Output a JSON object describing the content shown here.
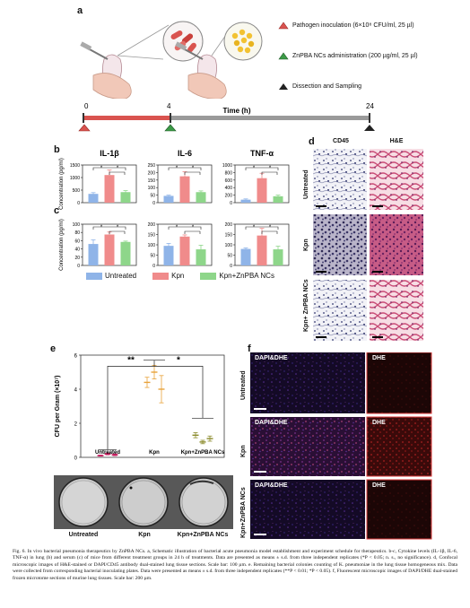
{
  "panel_a": {
    "label": "a",
    "legend": [
      {
        "text": "Pathogen inoculation (6×10⁸ CFU/ml, 25 µl)",
        "color": "#d9534f"
      },
      {
        "text": "ZnPBA NCs administration (200 µg/ml, 25 µl)",
        "color": "#3c9a47"
      },
      {
        "text": "Dissection and Sampling",
        "color": "#222222"
      }
    ],
    "timeline": {
      "label": "Time (h)",
      "ticks": [
        "0",
        "4",
        "24"
      ]
    }
  },
  "panel_labels": {
    "b": "b",
    "c": "c",
    "d": "d",
    "e": "e",
    "f": "f"
  },
  "bar_legend": [
    {
      "name": "Untreated",
      "color": "#8fb4e8"
    },
    {
      "name": "Kpn",
      "color": "#f08b8b"
    },
    {
      "name": "Kpn+ZnPBA NCs",
      "color": "#8ed68a"
    }
  ],
  "chart_data": [
    {
      "type": "bar",
      "panel": "b",
      "title": "IL-1β",
      "ylabel": "Concentration (pg/ml)",
      "categories": [
        "Untreated",
        "Kpn",
        "Kpn+ZnPBA NCs"
      ],
      "values": [
        350,
        1100,
        420
      ],
      "errors": [
        50,
        200,
        60
      ],
      "ylim": [
        0,
        1500
      ],
      "yticks": [
        "0",
        "500",
        "1000",
        "1500"
      ],
      "sig": [
        "*",
        "*"
      ]
    },
    {
      "type": "bar",
      "panel": "b",
      "title": "IL-6",
      "ylabel": "",
      "categories": [
        "Untreated",
        "Kpn",
        "Kpn+ZnPBA NCs"
      ],
      "values": [
        45,
        175,
        70
      ],
      "errors": [
        5,
        30,
        8
      ],
      "ylim": [
        0,
        250
      ],
      "yticks": [
        "0",
        "50",
        "100",
        "150",
        "200",
        "250"
      ],
      "sig": [
        "*",
        "*"
      ]
    },
    {
      "type": "bar",
      "panel": "b",
      "title": "TNF-α",
      "ylabel": "",
      "categories": [
        "Untreated",
        "Kpn",
        "Kpn+ZnPBA NCs"
      ],
      "values": [
        80,
        650,
        170
      ],
      "errors": [
        20,
        130,
        30
      ],
      "ylim": [
        0,
        1000
      ],
      "yticks": [
        "0",
        "200",
        "400",
        "600",
        "800",
        "1000"
      ],
      "sig": [
        "*",
        "*"
      ]
    },
    {
      "type": "bar",
      "panel": "c",
      "title": "",
      "ylabel": "Concentration (pg/ml)",
      "categories": [
        "Untreated",
        "Kpn",
        "Kpn+ZnPBA NCs"
      ],
      "values": [
        52,
        75,
        57
      ],
      "errors": [
        10,
        6,
        2
      ],
      "ylim": [
        0,
        100
      ],
      "yticks": [
        "0",
        "20",
        "40",
        "60",
        "80",
        "100"
      ],
      "sig": [
        "*",
        "*"
      ]
    },
    {
      "type": "bar",
      "panel": "c",
      "title": "",
      "ylabel": "",
      "categories": [
        "Untreated",
        "Kpn",
        "Kpn+ZnPBA NCs"
      ],
      "values": [
        95,
        140,
        78
      ],
      "errors": [
        12,
        8,
        20
      ],
      "ylim": [
        0,
        200
      ],
      "yticks": [
        "0",
        "50",
        "100",
        "150",
        "200"
      ],
      "sig": [
        "*",
        "*"
      ]
    },
    {
      "type": "bar",
      "panel": "c",
      "title": "",
      "ylabel": "",
      "categories": [
        "Untreated",
        "Kpn",
        "Kpn+ZnPBA NCs"
      ],
      "values": [
        80,
        145,
        78
      ],
      "errors": [
        5,
        35,
        15
      ],
      "ylim": [
        0,
        200
      ],
      "yticks": [
        "0",
        "50",
        "100",
        "150",
        "200"
      ],
      "sig": [
        "*",
        "*"
      ]
    },
    {
      "type": "scatter",
      "panel": "e",
      "title": "",
      "ylabel": "CFU per Gram (×10⁷)",
      "categories": [
        "Untreated",
        "Kpn",
        "Kpn+ZnPBA NCs"
      ],
      "series": [
        {
          "group": "Untreated",
          "color": "#c2185b",
          "points": [
            [
              0.1,
              0.03
            ],
            [
              0.2,
              0.05
            ],
            [
              0.15,
              0.05
            ]
          ]
        },
        {
          "group": "Kpn",
          "color": "#e8a23a",
          "points": [
            [
              4.4,
              0.3
            ],
            [
              5.0,
              0.4
            ],
            [
              4.0,
              0.8
            ]
          ]
        },
        {
          "group": "Kpn+ZnPBA NCs",
          "color": "#8a8a2a",
          "points": [
            [
              1.3,
              0.15
            ],
            [
              0.9,
              0.1
            ],
            [
              1.1,
              0.15
            ]
          ]
        }
      ],
      "ylim": [
        0,
        6
      ],
      "yticks": [
        "0",
        "2",
        "4",
        "6"
      ],
      "sig": [
        "**",
        "*"
      ]
    }
  ],
  "panel_d": {
    "col_titles": [
      "CD45",
      "H&E"
    ],
    "row_labels": [
      "Untreated",
      "Kpn",
      "Kpn+ ZnPBA NCs"
    ]
  },
  "panel_e_plates": [
    "Untreated",
    "Kpn",
    "Kpn+ZnPBA NCs"
  ],
  "panel_f": {
    "row_labels": [
      "Untreated",
      "Kpn",
      "Kpn+ZnPBA NCs"
    ],
    "merge_label": "DAPI&DHE",
    "dhe_label": "DHE"
  },
  "caption": "Fig. 6. In vivo bacterial pneumonia therapeutics by ZnPBA NCs. a, Schematic illustration of bacterial acute pneumonia model establishment and experiment schedule for therapeutics. b-c, Cytokine levels (IL-1β, IL-6, TNF-α) in lung (b) and serum (c) of mice from different treatment groups in 24 h of treatments. Data are presented as means ± s.d. from three independent replicates (*P < 0.05; n. s., no significance). d, Confocal microscopic images of H&E-stained or DAPI/CD45 antibody dual-stained lung tissue sections. Scale bar: 100 µm. e. Remaining bacterial colonies counting of K. pneumoniae in the lung tissue homogeneous mix. Data were collected from corresponding bacterial inoculating plates. Data were presented as means ± s.d. from three independent replicates (**P < 0.01; *P < 0.05). f, Fluorescent microscopic images of DAPI/DHE dual-stained frozen microtome sections of murine lung tissues. Scale bar: 200 µm."
}
